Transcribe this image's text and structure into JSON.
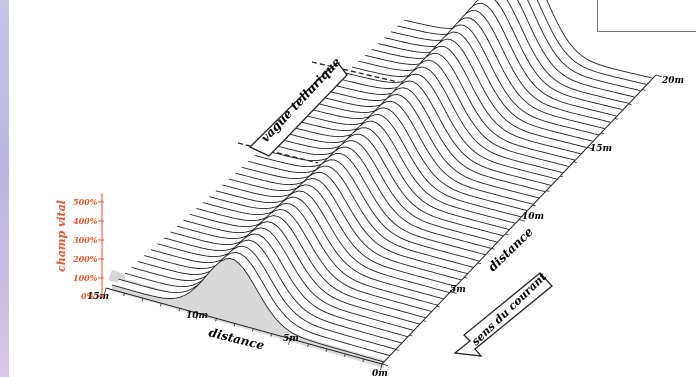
{
  "wave_label": "vague tellurique",
  "current_label": "sens du courant",
  "vital_axis": {
    "title": "champ vital",
    "ticks": [
      "500%",
      "400%",
      "300%",
      "200%",
      "100%",
      "0%"
    ],
    "color": "#e8532a"
  },
  "front_axis": {
    "title": "distance",
    "ticks": [
      "15m",
      "10m",
      "5m",
      "0m"
    ]
  },
  "depth_axis": {
    "title": "distance",
    "ticks": [
      "5m",
      "10m",
      "15m",
      "20m"
    ]
  },
  "colors": {
    "curve": "#222222",
    "fill": "#ffffff",
    "base": "#d6d6d6",
    "axis_text": "#111111"
  }
}
